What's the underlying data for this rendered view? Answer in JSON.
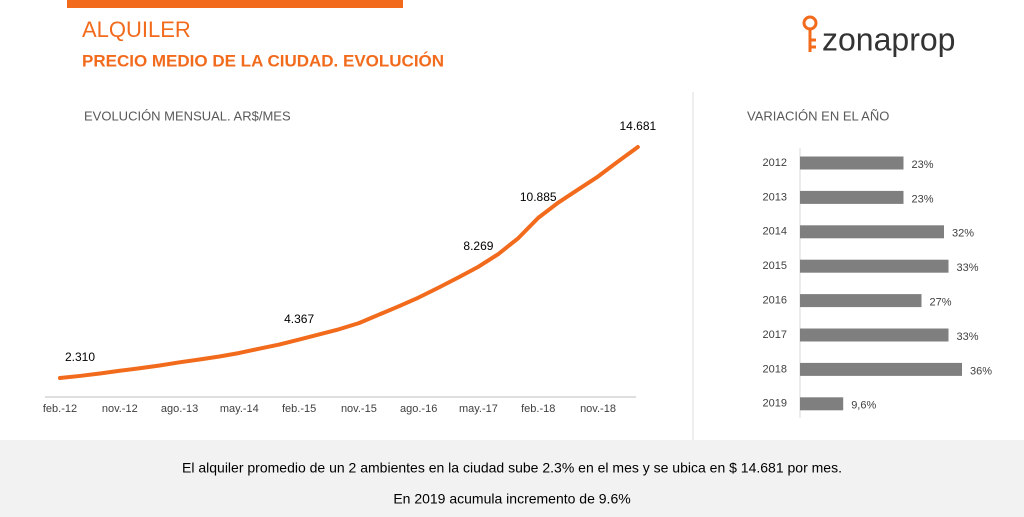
{
  "header": {
    "title": "ALQUILER",
    "subtitle": "PRECIO MEDIO DE LA CIUDAD. EVOLUCIÓN",
    "logo": "zonaprop"
  },
  "chart_data": [
    {
      "type": "line",
      "title": "EVOLUCIÓN MENSUAL. AR$/MES",
      "color": "#f26b1d",
      "categories": [
        "feb.-12",
        null,
        null,
        "nov.-12",
        null,
        null,
        "ago.-13",
        null,
        null,
        "may.-14",
        null,
        null,
        "feb.-15",
        null,
        null,
        "nov.-15",
        null,
        null,
        "ago.-16",
        null,
        null,
        "may.-17",
        null,
        null,
        "feb.-18",
        null,
        null,
        "nov.-18",
        null,
        null
      ],
      "values": [
        2310,
        2420,
        2550,
        2700,
        2830,
        2980,
        3150,
        3300,
        3460,
        3650,
        3880,
        4100,
        4367,
        4640,
        4920,
        5250,
        5700,
        6150,
        6620,
        7150,
        7700,
        8269,
        8950,
        9800,
        10885,
        11700,
        12400,
        13100,
        13900,
        14681
      ],
      "value_labels": [
        "2.310",
        null,
        null,
        null,
        null,
        null,
        null,
        null,
        null,
        null,
        null,
        null,
        "4.367",
        null,
        null,
        null,
        null,
        null,
        null,
        null,
        null,
        "8.269",
        null,
        null,
        "10.885",
        null,
        null,
        null,
        null,
        "14.681"
      ]
    },
    {
      "type": "hbar",
      "title": "VARIACIÓN EN EL AÑO",
      "color": "#7f7f7f",
      "categories": [
        "2012",
        "2013",
        "2014",
        "2015",
        "2016",
        "2017",
        "2018",
        "2019"
      ],
      "values": [
        23,
        23,
        32,
        33,
        27,
        33,
        36,
        9.6
      ],
      "value_labels": [
        "23%",
        "23%",
        "32%",
        "33%",
        "27%",
        "33%",
        "36%",
        "9,6%"
      ]
    }
  ],
  "footer": {
    "lines": [
      "El alquiler promedio de un 2 ambientes en la ciudad sube 2.3% en el mes y se ubica en $ 14.681 por mes.",
      "En 2019 acumula incremento de 9.6%"
    ]
  }
}
